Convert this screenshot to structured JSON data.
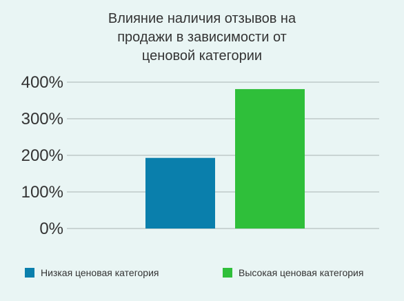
{
  "title_lines": [
    "Влияние наличия отзывов на",
    "продажи в зависимости от",
    "ценовой категории"
  ],
  "colors": {
    "background": "#e9f5f4",
    "grid": "#a9b3b2",
    "text": "#333333",
    "low": "#0a7fac",
    "high": "#2fbf3a"
  },
  "chart_data": {
    "type": "bar",
    "title": "Влияние наличия отзывов на продажи в зависимости от ценовой категории",
    "categories": [
      "Низкая ценовая категория",
      "Высокая ценовая категория"
    ],
    "values": [
      193,
      381
    ],
    "ylim": [
      0,
      400
    ],
    "yticks": [
      0,
      100,
      200,
      300,
      400
    ],
    "ytick_labels": [
      "0%",
      "100%",
      "200%",
      "300%",
      "400%"
    ],
    "ylabel": "",
    "xlabel": "",
    "grid": true,
    "legend_position": "bottom"
  },
  "legend": {
    "items": [
      {
        "label": "Низкая ценовая категория",
        "color": "#0a7fac"
      },
      {
        "label": "Высокая ценовая категория",
        "color": "#2fbf3a"
      }
    ]
  }
}
